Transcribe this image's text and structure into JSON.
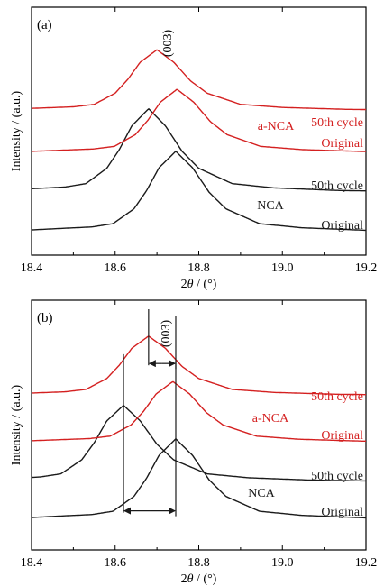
{
  "colors": {
    "black": "#1a1a1a",
    "red": "#d42020"
  },
  "chart_data": [
    {
      "type": "line",
      "panel_label": "(a)",
      "xlabel_prefix": "2",
      "xlabel_theta": "θ",
      "xlabel_suffix": " / (°)",
      "ylabel": "Intensity / (a.u.)",
      "xlim": [
        18.4,
        19.2
      ],
      "xticks": [
        "18.4",
        "18.6",
        "18.8",
        "19.0",
        "19.2"
      ],
      "peak_annotation": "(003)",
      "curve_shape": [
        [
          -0.4,
          0.03
        ],
        [
          -0.2,
          0.08
        ],
        [
          -0.15,
          0.12
        ],
        [
          -0.1,
          0.3
        ],
        [
          -0.07,
          0.52
        ],
        [
          -0.04,
          0.8
        ],
        [
          0,
          1
        ],
        [
          0.04,
          0.8
        ],
        [
          0.08,
          0.5
        ],
        [
          0.12,
          0.3
        ],
        [
          0.2,
          0.12
        ],
        [
          0.3,
          0.07
        ],
        [
          0.45,
          0.04
        ],
        [
          0.7,
          0.02
        ]
      ],
      "series": [
        {
          "material": "NCA",
          "state": "Original",
          "color": "black",
          "peak_x": 18.745,
          "base_level": 0.0,
          "height": 0.57
        },
        {
          "material": "NCA",
          "state": "50th cycle",
          "color": "black",
          "peak_x": 18.68,
          "base_level": 0.19,
          "height": 0.59
        },
        {
          "material": "a-NCA",
          "state": "Original",
          "color": "red",
          "peak_x": 18.748,
          "base_level": 0.37,
          "height": 0.45
        },
        {
          "material": "a-NCA",
          "state": "50th cycle",
          "color": "red",
          "peak_x": 18.7,
          "base_level": 0.56,
          "height": 0.43
        }
      ],
      "text_labels": [
        {
          "text": "50th cycle",
          "color": "red"
        },
        {
          "text": "a-NCA",
          "color": "red"
        },
        {
          "text": "Original",
          "color": "red"
        },
        {
          "text": "50th cycle",
          "color": "black"
        },
        {
          "text": "NCA",
          "color": "black"
        },
        {
          "text": "Original",
          "color": "black"
        }
      ]
    },
    {
      "type": "line",
      "panel_label": "(b)",
      "xlabel_prefix": "2",
      "xlabel_theta": "θ",
      "xlabel_suffix": " / (°)",
      "ylabel": "Intensity / (a.u.)",
      "xlim": [
        18.4,
        19.2
      ],
      "xticks": [
        "18.4",
        "18.6",
        "18.8",
        "19.0",
        "19.2"
      ],
      "peak_annotation": "(003)",
      "curve_shape": [
        [
          -0.4,
          0.03
        ],
        [
          -0.2,
          0.08
        ],
        [
          -0.15,
          0.12
        ],
        [
          -0.1,
          0.3
        ],
        [
          -0.07,
          0.52
        ],
        [
          -0.04,
          0.8
        ],
        [
          0,
          1
        ],
        [
          0.04,
          0.8
        ],
        [
          0.08,
          0.5
        ],
        [
          0.12,
          0.3
        ],
        [
          0.2,
          0.12
        ],
        [
          0.3,
          0.07
        ],
        [
          0.45,
          0.04
        ],
        [
          0.7,
          0.02
        ]
      ],
      "series": [
        {
          "material": "NCA",
          "state": "Original",
          "color": "black",
          "peak_x": 18.745,
          "base_level": 0.0,
          "height": 0.57
        },
        {
          "material": "NCA",
          "state": "50th cycle",
          "color": "black",
          "peak_x": 18.62,
          "base_level": 0.21,
          "height": 0.54
        },
        {
          "material": "a-NCA",
          "state": "Original",
          "color": "red",
          "peak_x": 18.738,
          "base_level": 0.39,
          "height": 0.43
        },
        {
          "material": "a-NCA",
          "state": "50th cycle",
          "color": "red",
          "peak_x": 18.68,
          "base_level": 0.57,
          "height": 0.42
        }
      ],
      "shift_markers": [
        {
          "x_from": 18.62,
          "x_to": 18.745,
          "y_level": 0.07,
          "line_top": 0.82
        },
        {
          "x_from": 18.68,
          "x_to": 18.745,
          "y_level": 0.66,
          "line_top": 1.0
        }
      ],
      "text_labels": [
        {
          "text": "50th cycle",
          "color": "red"
        },
        {
          "text": "a-NCA",
          "color": "red"
        },
        {
          "text": "Original",
          "color": "red"
        },
        {
          "text": "50th cycle",
          "color": "black"
        },
        {
          "text": "NCA",
          "color": "black"
        },
        {
          "text": "Original",
          "color": "black"
        }
      ]
    }
  ]
}
